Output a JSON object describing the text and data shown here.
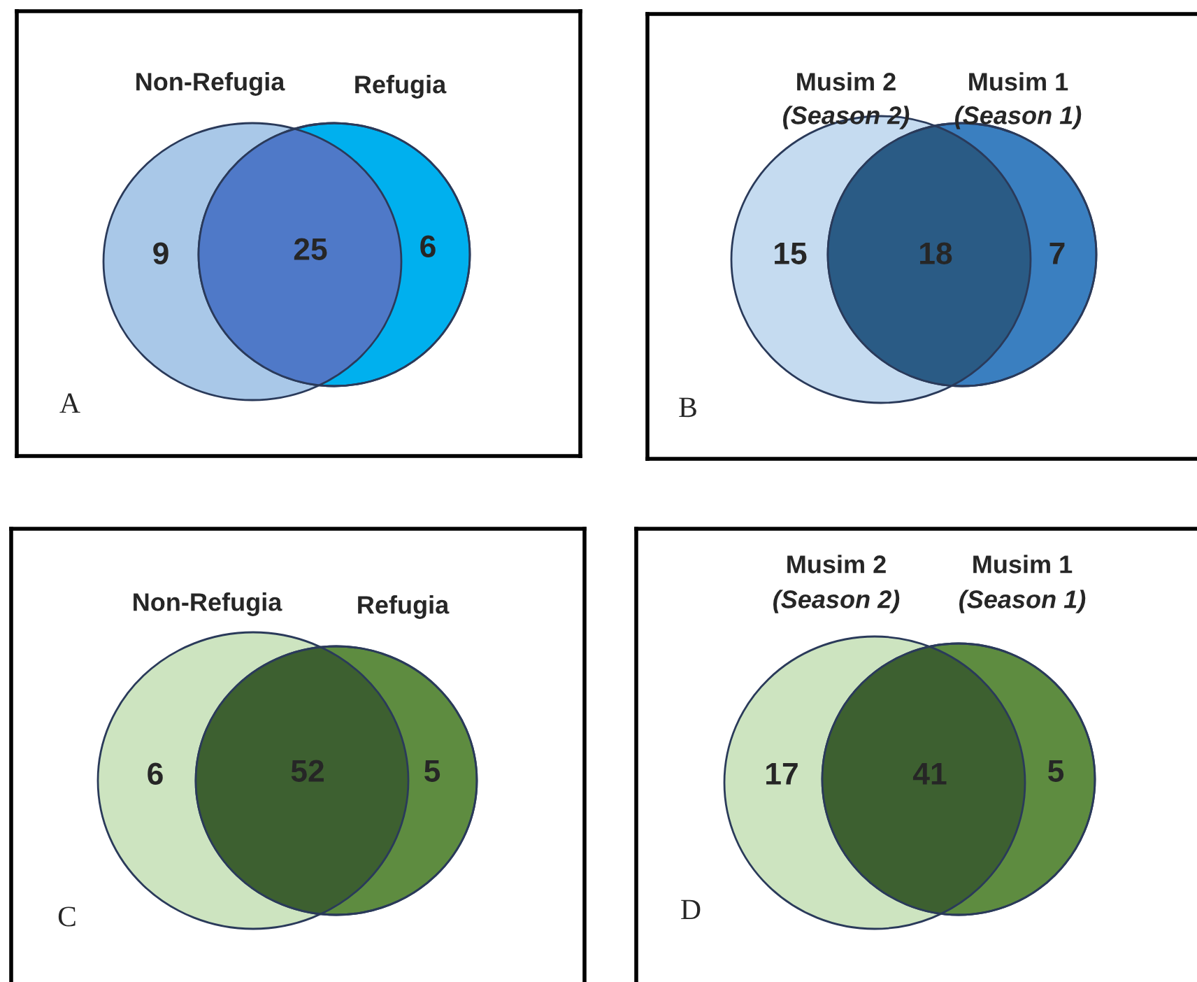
{
  "chart_data": [
    {
      "type": "other",
      "categories": [
        "Non-Refugia",
        null,
        "Refugia"
      ],
      "values": [
        9,
        25,
        6
      ],
      "colors": [
        "#a9c8e8",
        "#4f79c8",
        "#00b0ee"
      ],
      "annotations": [
        "A"
      ],
      "data_labels": true
    },
    {
      "type": "other",
      "categories": [
        "Musim 2",
        null,
        "Musim 1"
      ],
      "values": [
        15,
        18,
        7
      ],
      "colors": [
        "#c5dbf0",
        "#2a5b85",
        "#3a7fc0"
      ],
      "annotations": [
        "(Season 2)",
        "(Season 1)",
        "B"
      ],
      "data_labels": true
    },
    {
      "type": "other",
      "categories": [
        "Non-Refugia",
        null,
        "Refugia"
      ],
      "values": [
        6,
        52,
        5
      ],
      "colors": [
        "#cde4c0",
        "#3d6030",
        "#5e8c40"
      ],
      "annotations": [
        "C"
      ],
      "data_labels": true
    },
    {
      "type": "other",
      "categories": [
        "Musim 2",
        null,
        "Musim 1"
      ],
      "values": [
        17,
        41,
        5
      ],
      "colors": [
        "#cde4c0",
        "#3d6030",
        "#5e8c40"
      ],
      "annotations": [
        "(Season 2)",
        "(Season 1)",
        "D"
      ],
      "data_labels": true
    }
  ]
}
